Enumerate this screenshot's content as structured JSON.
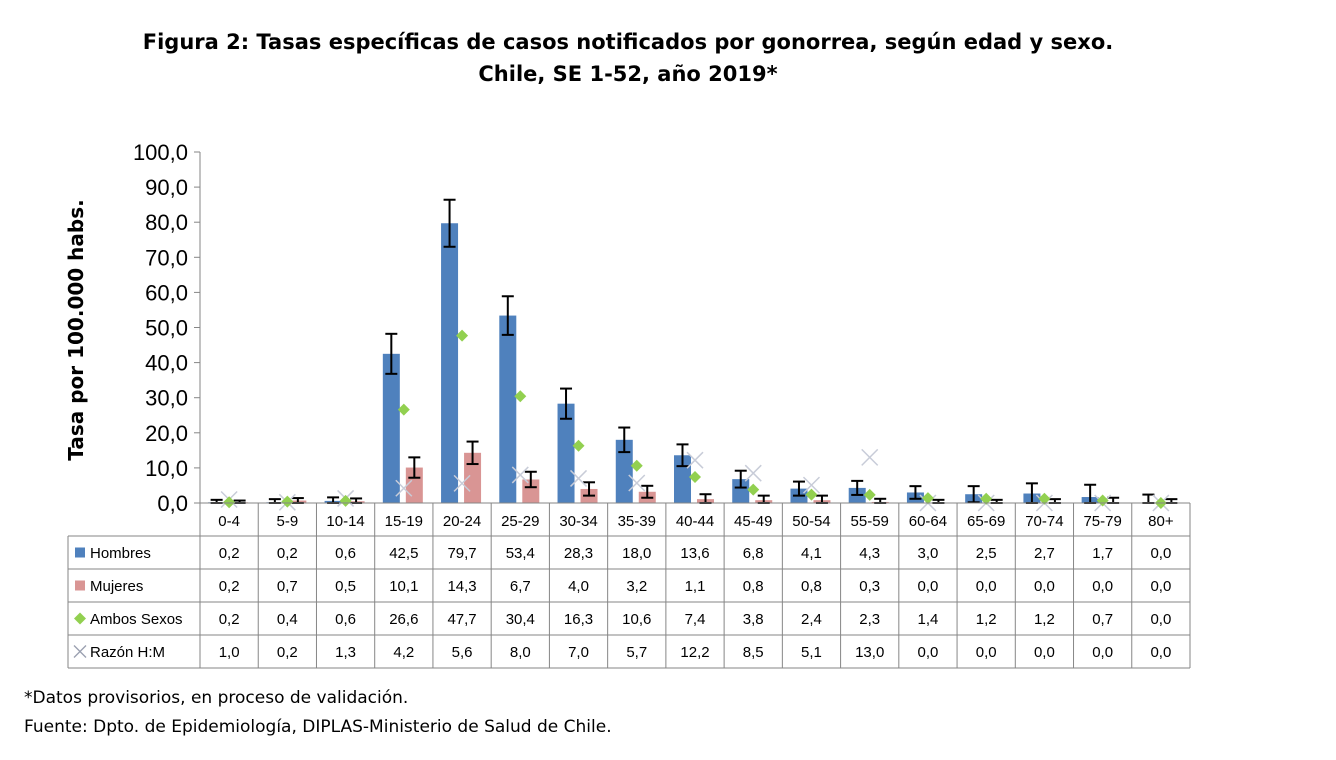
{
  "title_line1": "Figura 2: Tasas específicas de casos notificados por gonorrea, según edad y sexo.",
  "title_line2": "Chile, SE 1-52, año 2019*",
  "note1": "*Datos provisorios, en proceso de validación.",
  "note2": "Fuente: Dpto. de Epidemiología, DIPLAS-Ministerio de Salud de Chile.",
  "chart_data": {
    "type": "bar",
    "ylabel": "Tasa por 100.000 habs.",
    "ylim": [
      0,
      100
    ],
    "yticks": [
      "0,0",
      "10,0",
      "20,0",
      "30,0",
      "40,0",
      "50,0",
      "60,0",
      "70,0",
      "80,0",
      "90,0",
      "100,0"
    ],
    "categories": [
      "0-4",
      "5-9",
      "10-14",
      "15-19",
      "20-24",
      "25-29",
      "30-34",
      "35-39",
      "40-44",
      "45-49",
      "50-54",
      "55-59",
      "60-64",
      "65-69",
      "70-74",
      "75-79",
      "80+"
    ],
    "series": [
      {
        "name": "Hombres",
        "mark": "bar",
        "color": "#4f81bd",
        "values": [
          0.2,
          0.2,
          0.6,
          42.5,
          79.7,
          53.4,
          28.3,
          18.0,
          13.6,
          6.8,
          4.1,
          4.3,
          3.0,
          2.5,
          2.7,
          1.7,
          0.0
        ],
        "labels": [
          "0,2",
          "0,2",
          "0,6",
          "42,5",
          "79,7",
          "53,4",
          "28,3",
          "18,0",
          "13,6",
          "6,8",
          "4,1",
          "4,3",
          "3,0",
          "2,5",
          "2,7",
          "1,7",
          "0,0"
        ],
        "error_upper": [
          0.9,
          1.1,
          1.6,
          48.2,
          86.4,
          58.9,
          32.6,
          21.5,
          16.7,
          9.2,
          6.1,
          6.3,
          4.8,
          4.8,
          5.6,
          5.2,
          2.4
        ]
      },
      {
        "name": "Mujeres",
        "mark": "bar",
        "color": "#d99594",
        "values": [
          0.2,
          0.7,
          0.5,
          10.1,
          14.3,
          6.7,
          4.0,
          3.2,
          1.1,
          0.8,
          0.8,
          0.3,
          0.0,
          0.0,
          0.0,
          0.0,
          0.0
        ],
        "labels": [
          "0,2",
          "0,7",
          "0,5",
          "10,1",
          "14,3",
          "6,7",
          "4,0",
          "3,2",
          "1,1",
          "0,8",
          "0,8",
          "0,3",
          "0,0",
          "0,0",
          "0,0",
          "0,0",
          "0,0"
        ],
        "error_upper": [
          0.7,
          1.4,
          1.3,
          13.0,
          17.5,
          8.9,
          5.9,
          4.9,
          2.5,
          2.1,
          2.1,
          1.2,
          0.9,
          0.9,
          1.1,
          1.5,
          1.1
        ]
      },
      {
        "name": "Ambos Sexos",
        "mark": "diamond",
        "color": "#92d050",
        "values": [
          0.2,
          0.4,
          0.6,
          26.6,
          47.7,
          30.4,
          16.3,
          10.6,
          7.4,
          3.8,
          2.4,
          2.3,
          1.4,
          1.2,
          1.2,
          0.7,
          0.0
        ],
        "labels": [
          "0,2",
          "0,4",
          "0,6",
          "26,6",
          "47,7",
          "30,4",
          "16,3",
          "10,6",
          "7,4",
          "3,8",
          "2,4",
          "2,3",
          "1,4",
          "1,2",
          "1,2",
          "0,7",
          "0,0"
        ]
      },
      {
        "name": "Razón H:M",
        "mark": "x",
        "color": "#c8ccd8",
        "values": [
          1.0,
          0.2,
          1.3,
          4.2,
          5.6,
          8.0,
          7.0,
          5.7,
          12.2,
          8.5,
          5.1,
          13.0,
          0.0,
          0.0,
          0.0,
          0.0,
          0.0
        ],
        "labels": [
          "1,0",
          "0,2",
          "1,3",
          "4,2",
          "5,6",
          "8,0",
          "7,0",
          "5,7",
          "12,2",
          "8,5",
          "5,1",
          "13,0",
          "0,0",
          "0,0",
          "0,0",
          "0,0",
          "0,0"
        ]
      }
    ]
  }
}
